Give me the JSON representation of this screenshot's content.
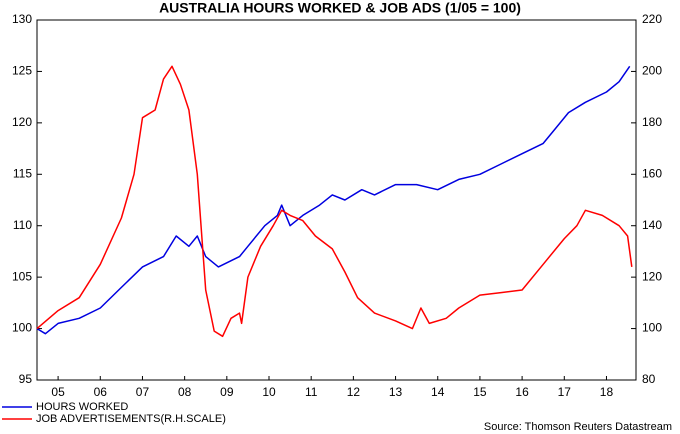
{
  "chart_data": {
    "type": "line",
    "title": "AUSTRALIA HOURS WORKED & JOB ADS (1/05 = 100)",
    "source": "Source: Thomson Reuters Datastream",
    "xlim": [
      2005,
      2019.2
    ],
    "xticks": [
      {
        "value": 2005.5,
        "label": "05"
      },
      {
        "value": 2006.5,
        "label": "06"
      },
      {
        "value": 2007.5,
        "label": "07"
      },
      {
        "value": 2008.5,
        "label": "08"
      },
      {
        "value": 2009.5,
        "label": "09"
      },
      {
        "value": 2010.5,
        "label": "10"
      },
      {
        "value": 2011.5,
        "label": "11"
      },
      {
        "value": 2012.5,
        "label": "12"
      },
      {
        "value": 2013.5,
        "label": "13"
      },
      {
        "value": 2014.5,
        "label": "14"
      },
      {
        "value": 2015.5,
        "label": "15"
      },
      {
        "value": 2016.5,
        "label": "16"
      },
      {
        "value": 2017.5,
        "label": "17"
      },
      {
        "value": 2018.5,
        "label": "18"
      }
    ],
    "ylim": [
      95,
      130
    ],
    "yticks": [
      95,
      100,
      105,
      110,
      115,
      120,
      125,
      130
    ],
    "y2lim": [
      80,
      220
    ],
    "y2ticks": [
      80,
      100,
      120,
      140,
      160,
      180,
      200,
      220
    ],
    "series": [
      {
        "name": "HOURS WORKED",
        "color": "#0000e0",
        "x": [
          2005,
          2005.2,
          2005.5,
          2006,
          2006.5,
          2007,
          2007.5,
          2008,
          2008.3,
          2008.6,
          2008.8,
          2009,
          2009.3,
          2009.8,
          2010,
          2010.4,
          2010.7,
          2010.8,
          2011,
          2011.3,
          2011.7,
          2012,
          2012.3,
          2012.7,
          2013,
          2013.5,
          2014,
          2014.5,
          2015,
          2015.5,
          2016,
          2016.5,
          2017,
          2017.3,
          2017.6,
          2018,
          2018.5,
          2018.8,
          2019.05
        ],
        "values": [
          100,
          99.5,
          100.5,
          101,
          102,
          104,
          106,
          107,
          109,
          108,
          109,
          107,
          106,
          107,
          108,
          110,
          111,
          112,
          110,
          111,
          112,
          113,
          112.5,
          113.5,
          113,
          114,
          114,
          113.5,
          114.5,
          115,
          116,
          117,
          118,
          119.5,
          121,
          122,
          123,
          124,
          125.5
        ]
      },
      {
        "name": "JOB ADVERTISEMENTS(R.H.SCALE)",
        "color": "#ff0000",
        "axis": "y2",
        "x": [
          2005,
          2005.5,
          2006,
          2006.5,
          2007,
          2007.3,
          2007.5,
          2007.8,
          2008,
          2008.2,
          2008.4,
          2008.6,
          2008.8,
          2009,
          2009.2,
          2009.4,
          2009.6,
          2009.8,
          2009.85,
          2010,
          2010.3,
          2010.6,
          2010.8,
          2011,
          2011.3,
          2011.6,
          2012,
          2012.3,
          2012.6,
          2013,
          2013.5,
          2013.9,
          2014.1,
          2014.3,
          2014.7,
          2015,
          2015.5,
          2016,
          2016.5,
          2017,
          2017.5,
          2017.8,
          2018,
          2018.4,
          2018.8,
          2019,
          2019.1
        ],
        "values": [
          100,
          107,
          112,
          125,
          143,
          160,
          182,
          185,
          197,
          202,
          195,
          185,
          160,
          115,
          99,
          97,
          104,
          106,
          102,
          120,
          132,
          140,
          146,
          144,
          142,
          136,
          131,
          122,
          112,
          106,
          103,
          100,
          108,
          102,
          104,
          108,
          113,
          114,
          115,
          125,
          135,
          140,
          146,
          144,
          140,
          136,
          124
        ]
      }
    ]
  }
}
